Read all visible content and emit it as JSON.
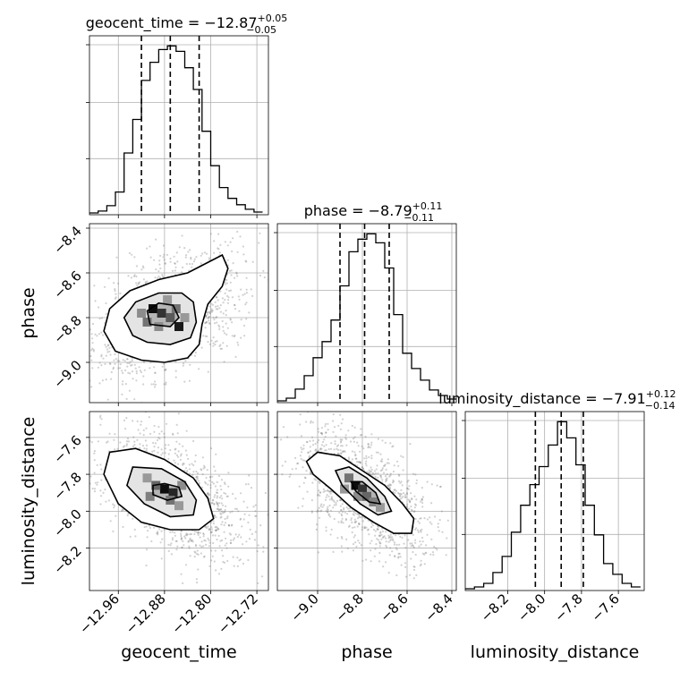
{
  "chart_data": {
    "type": "corner",
    "grid": true,
    "parameters": [
      {
        "name": "geocent_time",
        "axis_label": "geocent_time",
        "title_main": "geocent_time = −12.87",
        "title_plus": "+0.05",
        "title_minus": "−0.05",
        "median": -12.87,
        "q_low": -12.92,
        "q_high": -12.82,
        "range": [
          -13.01,
          -12.7
        ],
        "ticks": [
          -12.96,
          -12.88,
          -12.8,
          -12.72
        ],
        "tick_labels": [
          "−12.96",
          "−12.88",
          "−12.80",
          "−12.72"
        ],
        "hist_bins": [
          -13.01,
          -12.995,
          -12.98,
          -12.965,
          -12.95,
          -12.935,
          -12.92,
          -12.905,
          -12.89,
          -12.875,
          -12.86,
          -12.845,
          -12.83,
          -12.815,
          -12.8,
          -12.785,
          -12.77,
          -12.755,
          -12.74,
          -12.725,
          -12.71
        ],
        "hist_counts": [
          2,
          4,
          10,
          25,
          68,
          105,
          148,
          168,
          182,
          186,
          180,
          162,
          138,
          92,
          54,
          30,
          18,
          11,
          6,
          3
        ]
      },
      {
        "name": "phase",
        "axis_label": "phase",
        "title_main": "phase = −8.79",
        "title_plus": "+0.11",
        "title_minus": "−0.11",
        "median": -8.79,
        "q_low": -8.9,
        "q_high": -8.68,
        "range": [
          -9.18,
          -8.38
        ],
        "ticks": [
          -9.0,
          -8.8,
          -8.6,
          -8.4
        ],
        "tick_labels": [
          "−9.0",
          "−8.8",
          "−8.6",
          "−8.4"
        ],
        "tick_labels_left": [
          "−8.4",
          "−8.6",
          "−8.8",
          "−9.0"
        ],
        "hist_bins": [
          -9.18,
          -9.14,
          -9.1,
          -9.06,
          -9.02,
          -8.98,
          -8.94,
          -8.9,
          -8.86,
          -8.82,
          -8.78,
          -8.74,
          -8.7,
          -8.66,
          -8.62,
          -8.58,
          -8.54,
          -8.5,
          -8.46,
          -8.42,
          -8.38
        ],
        "hist_counts": [
          2,
          5,
          15,
          30,
          50,
          68,
          92,
          130,
          168,
          182,
          188,
          178,
          150,
          98,
          55,
          38,
          25,
          14,
          8,
          4
        ]
      },
      {
        "name": "luminosity_distance",
        "axis_label": "luminosity_distance",
        "title_main": "luminosity_distance = −7.91",
        "title_plus": "+0.12",
        "title_minus": "−0.14",
        "median": -7.91,
        "q_low": -8.05,
        "q_high": -7.79,
        "range": [
          -8.43,
          -7.46
        ],
        "ticks": [
          -8.2,
          -8.0,
          -7.8,
          -7.6
        ],
        "tick_labels": [
          "−8.2",
          "−8.0",
          "−7.8",
          "−7.6"
        ],
        "tick_labels_left": [
          "−7.6",
          "−7.8",
          "−8.0",
          "−8.2"
        ],
        "hist_bins": [
          -8.43,
          -8.38,
          -8.33,
          -8.28,
          -8.23,
          -8.18,
          -8.13,
          -8.08,
          -8.03,
          -7.98,
          -7.93,
          -7.88,
          -7.83,
          -7.78,
          -7.73,
          -7.68,
          -7.63,
          -7.58,
          -7.53,
          -7.48
        ],
        "hist_counts": [
          2,
          4,
          8,
          20,
          38,
          65,
          95,
          118,
          138,
          162,
          188,
          170,
          140,
          95,
          62,
          30,
          18,
          8,
          4
        ]
      }
    ],
    "pairs": [
      {
        "x": "geocent_time",
        "y": "phase",
        "mean": [
          -12.87,
          -8.79
        ],
        "contours": [
          [
            [
              -12.965,
              -8.95
            ],
            [
              -12.985,
              -8.86
            ],
            [
              -12.975,
              -8.76
            ],
            [
              -12.94,
              -8.68
            ],
            [
              -12.89,
              -8.63
            ],
            [
              -12.84,
              -8.6
            ],
            [
              -12.81,
              -8.56
            ],
            [
              -12.78,
              -8.52
            ],
            [
              -12.77,
              -8.58
            ],
            [
              -12.78,
              -8.66
            ],
            [
              -12.805,
              -8.74
            ],
            [
              -12.815,
              -8.83
            ],
            [
              -12.82,
              -8.92
            ],
            [
              -12.84,
              -8.98
            ],
            [
              -12.88,
              -9.0
            ],
            [
              -12.92,
              -8.99
            ]
          ],
          [
            [
              -12.935,
              -8.88
            ],
            [
              -12.95,
              -8.8
            ],
            [
              -12.93,
              -8.73
            ],
            [
              -12.89,
              -8.69
            ],
            [
              -12.85,
              -8.69
            ],
            [
              -12.83,
              -8.73
            ],
            [
              -12.825,
              -8.82
            ],
            [
              -12.835,
              -8.89
            ],
            [
              -12.87,
              -8.92
            ],
            [
              -12.91,
              -8.91
            ]
          ],
          [
            [
              -12.905,
              -8.83
            ],
            [
              -12.91,
              -8.77
            ],
            [
              -12.89,
              -8.735
            ],
            [
              -12.865,
              -8.745
            ],
            [
              -12.855,
              -8.8
            ],
            [
              -12.87,
              -8.84
            ]
          ]
        ],
        "cells": [
          {
            "x": -12.9,
            "y": -8.76,
            "v": 0.95
          },
          {
            "x": -12.885,
            "y": -8.78,
            "v": 0.8
          },
          {
            "x": -12.855,
            "y": -8.84,
            "v": 0.9
          },
          {
            "x": -12.87,
            "y": -8.8,
            "v": 0.65
          },
          {
            "x": -12.91,
            "y": -8.82,
            "v": 0.55
          },
          {
            "x": -12.86,
            "y": -8.76,
            "v": 0.55
          },
          {
            "x": -12.92,
            "y": -8.78,
            "v": 0.45
          },
          {
            "x": -12.89,
            "y": -8.84,
            "v": 0.45
          },
          {
            "x": -12.875,
            "y": -8.72,
            "v": 0.4
          },
          {
            "x": -12.845,
            "y": -8.8,
            "v": 0.4
          }
        ]
      },
      {
        "x": "geocent_time",
        "y": "luminosity_distance",
        "mean": [
          -12.87,
          -7.91
        ],
        "contours": [
          [
            [
              -12.975,
              -7.68
            ],
            [
              -12.985,
              -7.8
            ],
            [
              -12.96,
              -7.96
            ],
            [
              -12.92,
              -8.06
            ],
            [
              -12.87,
              -8.1
            ],
            [
              -12.82,
              -8.1
            ],
            [
              -12.795,
              -8.04
            ],
            [
              -12.805,
              -7.93
            ],
            [
              -12.83,
              -7.82
            ],
            [
              -12.88,
              -7.72
            ],
            [
              -12.93,
              -7.66
            ]
          ],
          [
            [
              -12.935,
              -7.76
            ],
            [
              -12.945,
              -7.86
            ],
            [
              -12.915,
              -7.96
            ],
            [
              -12.87,
              -8.03
            ],
            [
              -12.83,
              -8.02
            ],
            [
              -12.825,
              -7.94
            ],
            [
              -12.845,
              -7.84
            ],
            [
              -12.885,
              -7.77
            ]
          ],
          [
            [
              -12.9,
              -7.86
            ],
            [
              -12.9,
              -7.91
            ],
            [
              -12.875,
              -7.94
            ],
            [
              -12.85,
              -7.92
            ],
            [
              -12.855,
              -7.87
            ],
            [
              -12.88,
              -7.85
            ]
          ]
        ],
        "cells": [
          {
            "x": -12.88,
            "y": -7.88,
            "v": 0.95
          },
          {
            "x": -12.865,
            "y": -7.9,
            "v": 0.85
          },
          {
            "x": -12.895,
            "y": -7.86,
            "v": 0.6
          },
          {
            "x": -12.87,
            "y": -7.94,
            "v": 0.55
          },
          {
            "x": -12.905,
            "y": -7.92,
            "v": 0.5
          },
          {
            "x": -12.85,
            "y": -7.86,
            "v": 0.45
          },
          {
            "x": -12.91,
            "y": -7.82,
            "v": 0.4
          },
          {
            "x": -12.855,
            "y": -7.97,
            "v": 0.4
          }
        ]
      },
      {
        "x": "phase",
        "y": "luminosity_distance",
        "mean": [
          -8.79,
          -7.91
        ],
        "contours": [
          [
            [
              -9.05,
              -7.73
            ],
            [
              -9.0,
              -7.68
            ],
            [
              -8.9,
              -7.7
            ],
            [
              -8.8,
              -7.78
            ],
            [
              -8.7,
              -7.86
            ],
            [
              -8.62,
              -7.96
            ],
            [
              -8.57,
              -8.04
            ],
            [
              -8.58,
              -8.12
            ],
            [
              -8.66,
              -8.12
            ],
            [
              -8.75,
              -8.06
            ],
            [
              -8.85,
              -7.98
            ],
            [
              -8.94,
              -7.88
            ],
            [
              -9.02,
              -7.8
            ]
          ],
          [
            [
              -8.92,
              -7.78
            ],
            [
              -8.86,
              -7.76
            ],
            [
              -8.78,
              -7.82
            ],
            [
              -8.7,
              -7.92
            ],
            [
              -8.67,
              -8.0
            ],
            [
              -8.73,
              -8.02
            ],
            [
              -8.81,
              -7.96
            ],
            [
              -8.89,
              -7.86
            ]
          ],
          [
            [
              -8.85,
              -7.84
            ],
            [
              -8.8,
              -7.84
            ],
            [
              -8.74,
              -7.9
            ],
            [
              -8.72,
              -7.96
            ],
            [
              -8.77,
              -7.95
            ],
            [
              -8.83,
              -7.89
            ]
          ]
        ],
        "cells": [
          {
            "x": -8.83,
            "y": -7.86,
            "v": 0.95
          },
          {
            "x": -8.8,
            "y": -7.88,
            "v": 0.8
          },
          {
            "x": -8.78,
            "y": -7.92,
            "v": 0.6
          },
          {
            "x": -8.86,
            "y": -7.82,
            "v": 0.55
          },
          {
            "x": -8.75,
            "y": -7.95,
            "v": 0.5
          },
          {
            "x": -8.82,
            "y": -7.92,
            "v": 0.45
          },
          {
            "x": -8.88,
            "y": -7.88,
            "v": 0.4
          },
          {
            "x": -8.72,
            "y": -7.98,
            "v": 0.4
          }
        ]
      }
    ]
  }
}
